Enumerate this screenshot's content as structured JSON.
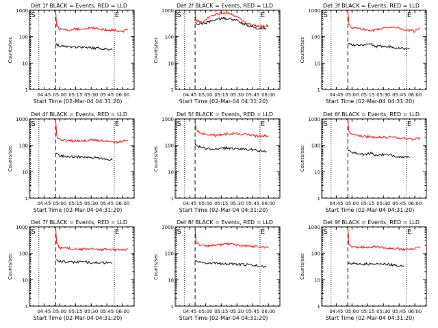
{
  "chart_data": [
    {
      "type": "line",
      "title": "Det 1f BLACK = Events, RED = LLD",
      "xlabel": "Start Time (02-Mar-04 04:31:20)",
      "ylabel": "Counts/sec",
      "yscale": "log",
      "ylim": [
        1,
        1000
      ],
      "xticks": [
        "04:45",
        "05:00",
        "05:15",
        "05:30",
        "05:45",
        "06:00"
      ],
      "yticks": [
        "1",
        "10",
        "100",
        "1000"
      ],
      "markers": [
        {
          "label": "S",
          "time": "04:32"
        },
        {
          "label": "E",
          "time": "05:52"
        }
      ],
      "dotted_lines": [
        "04:32",
        "04:40",
        "05:52"
      ],
      "dashed_line": "04:56",
      "series": [
        {
          "name": "Events",
          "color": "#000000",
          "x": [
            "04:56",
            "05:00",
            "05:10",
            "05:20",
            "05:30",
            "05:40",
            "05:50"
          ],
          "y": [
            55,
            45,
            42,
            40,
            38,
            36,
            32
          ]
        },
        {
          "name": "LLD",
          "color": "#ff0000",
          "x": [
            "04:56",
            "04:57",
            "05:00",
            "05:10",
            "05:20",
            "05:30",
            "05:40",
            "05:50",
            "06:00",
            "06:05"
          ],
          "y": [
            1000,
            260,
            190,
            180,
            200,
            210,
            190,
            180,
            160,
            190
          ]
        }
      ]
    },
    {
      "type": "line",
      "title": "Det 2f BLACK = Events, RED = LLD",
      "xlabel": "Start Time (02-Mar-04 04:31:20)",
      "ylabel": "Counts/sec",
      "yscale": "log",
      "ylim": [
        1,
        1000
      ],
      "xticks": [
        "04:45",
        "05:00",
        "05:15",
        "05:30",
        "05:45",
        "06:00"
      ],
      "yticks": [
        "1",
        "10",
        "100",
        "1000"
      ],
      "markers": [
        {
          "label": "S",
          "time": "04:32"
        },
        {
          "label": "E",
          "time": "05:52"
        }
      ],
      "dotted_lines": [
        "04:32",
        "04:40",
        "05:52"
      ],
      "dashed_line": "04:50",
      "series": [
        {
          "name": "Events",
          "color": "#000000",
          "x": [
            "04:50",
            "04:52",
            "05:00",
            "05:10",
            "05:20",
            "05:30",
            "05:40",
            "05:50",
            "05:58"
          ],
          "y": [
            320,
            290,
            330,
            450,
            500,
            410,
            260,
            210,
            210
          ]
        },
        {
          "name": "LLD",
          "color": "#ff0000",
          "x": [
            "04:50",
            "04:51",
            "04:55",
            "05:00",
            "05:10",
            "05:20",
            "05:30",
            "05:40",
            "05:50",
            "06:00"
          ],
          "y": [
            1000,
            420,
            350,
            450,
            700,
            800,
            600,
            300,
            250,
            260
          ]
        }
      ]
    },
    {
      "type": "line",
      "title": "Det 3f BLACK = Events, RED = LLD",
      "xlabel": "Start Time (02-Mar-04 04:31:20)",
      "ylabel": "Counts/sec",
      "yscale": "log",
      "ylim": [
        1,
        1000
      ],
      "xticks": [
        "04:45",
        "05:00",
        "05:15",
        "05:30",
        "05:45",
        "06:00"
      ],
      "yticks": [
        "1",
        "10",
        "100",
        "1000"
      ],
      "markers": [
        {
          "label": "S",
          "time": "04:32"
        },
        {
          "label": "E",
          "time": "05:52"
        }
      ],
      "dotted_lines": [
        "04:32",
        "04:40",
        "05:52"
      ],
      "dashed_line": "04:56",
      "series": [
        {
          "name": "Events",
          "color": "#000000",
          "x": [
            "04:56",
            "05:00",
            "05:10",
            "05:18",
            "05:22",
            "05:30",
            "05:40",
            "05:50",
            "05:55"
          ],
          "y": [
            60,
            50,
            45,
            55,
            40,
            45,
            40,
            35,
            35
          ]
        },
        {
          "name": "LLD",
          "color": "#ff0000",
          "x": [
            "04:56",
            "04:57",
            "05:00",
            "05:10",
            "05:20",
            "05:30",
            "05:40",
            "05:50",
            "06:00",
            "06:05"
          ],
          "y": [
            1000,
            300,
            220,
            190,
            170,
            210,
            240,
            180,
            160,
            220
          ]
        }
      ]
    },
    {
      "type": "line",
      "title": "Det 4f BLACK = Events, RED = LLD",
      "xlabel": "Start Time (02-Mar-04 04:31:20)",
      "ylabel": "Counts/sec",
      "yscale": "log",
      "ylim": [
        1,
        1000
      ],
      "xticks": [
        "04:45",
        "05:00",
        "05:15",
        "05:30",
        "05:45",
        "06:00"
      ],
      "yticks": [
        "1",
        "10",
        "100",
        "1000"
      ],
      "markers": [
        {
          "label": "S",
          "time": "04:32"
        },
        {
          "label": "E",
          "time": "05:52"
        }
      ],
      "dotted_lines": [
        "04:32",
        "04:40",
        "05:52"
      ],
      "dashed_line": "04:56",
      "series": [
        {
          "name": "Events",
          "color": "#000000",
          "x": [
            "04:56",
            "05:00",
            "05:10",
            "05:20",
            "05:30",
            "05:40",
            "05:50"
          ],
          "y": [
            50,
            40,
            38,
            36,
            34,
            32,
            28
          ]
        },
        {
          "name": "LLD",
          "color": "#ff0000",
          "x": [
            "04:56",
            "04:57",
            "05:00",
            "05:10",
            "05:20",
            "05:30",
            "05:40",
            "05:50",
            "06:00",
            "06:05"
          ],
          "y": [
            1000,
            240,
            160,
            150,
            140,
            160,
            150,
            130,
            140,
            160
          ]
        }
      ]
    },
    {
      "type": "line",
      "title": "Det 5f BLACK = Events, RED = LLD",
      "xlabel": "Start Time (02-Mar-04 04:31:20)",
      "ylabel": "Counts/sec",
      "yscale": "log",
      "ylim": [
        1,
        1000
      ],
      "xticks": [
        "04:45",
        "05:00",
        "05:15",
        "05:30",
        "05:45",
        "06:00"
      ],
      "yticks": [
        "1",
        "10",
        "100",
        "1000"
      ],
      "markers": [
        {
          "label": "S",
          "time": "04:32"
        },
        {
          "label": "E",
          "time": "05:52"
        }
      ],
      "dotted_lines": [
        "04:32",
        "04:40",
        "05:52"
      ],
      "dashed_line": "04:50",
      "series": [
        {
          "name": "Events",
          "color": "#000000",
          "x": [
            "04:50",
            "04:52",
            "05:00",
            "05:10",
            "05:20",
            "05:30",
            "05:40",
            "05:50",
            "05:58"
          ],
          "y": [
            110,
            95,
            75,
            70,
            80,
            75,
            70,
            65,
            60
          ]
        },
        {
          "name": "LLD",
          "color": "#ff0000",
          "x": [
            "04:50",
            "04:51",
            "04:55",
            "05:00",
            "05:10",
            "05:20",
            "05:30",
            "05:40",
            "05:50",
            "06:00"
          ],
          "y": [
            1000,
            400,
            300,
            260,
            240,
            270,
            280,
            250,
            220,
            230
          ]
        }
      ]
    },
    {
      "type": "line",
      "title": "Det 6f BLACK = Events, RED = LLD",
      "xlabel": "Start Time (02-Mar-04 04:31:20)",
      "ylabel": "Counts/sec",
      "yscale": "log",
      "ylim": [
        1,
        1000
      ],
      "xticks": [
        "04:45",
        "05:00",
        "05:15",
        "05:30",
        "05:45",
        "06:00"
      ],
      "yticks": [
        "1",
        "10",
        "100",
        "1000"
      ],
      "markers": [
        {
          "label": "S",
          "time": "04:32"
        },
        {
          "label": "E",
          "time": "05:52"
        }
      ],
      "dotted_lines": [
        "04:32",
        "04:40",
        "05:52"
      ],
      "dashed_line": "04:56",
      "series": [
        {
          "name": "Events",
          "color": "#000000",
          "x": [
            "04:56",
            "05:00",
            "05:10",
            "05:18",
            "05:22",
            "05:30",
            "05:40",
            "05:50",
            "05:55"
          ],
          "y": [
            65,
            55,
            45,
            50,
            42,
            45,
            40,
            36,
            34
          ]
        },
        {
          "name": "LLD",
          "color": "#ff0000",
          "x": [
            "04:56",
            "04:57",
            "05:00",
            "05:10",
            "05:20",
            "05:30",
            "05:40",
            "05:50",
            "06:00",
            "06:05"
          ],
          "y": [
            1000,
            320,
            250,
            220,
            200,
            200,
            210,
            180,
            170,
            190
          ]
        }
      ]
    },
    {
      "type": "line",
      "title": "Det 7f BLACK = Events, RED = LLD",
      "xlabel": "Start Time (02-Mar-04 04:31:20)",
      "ylabel": "Counts/sec",
      "yscale": "log",
      "ylim": [
        1,
        1000
      ],
      "xticks": [
        "04:45",
        "05:00",
        "05:15",
        "05:30",
        "05:45",
        "06:00"
      ],
      "yticks": [
        "1",
        "10",
        "100",
        "1000"
      ],
      "markers": [
        {
          "label": "S",
          "time": "04:32"
        },
        {
          "label": "E",
          "time": "05:52"
        }
      ],
      "dotted_lines": [
        "04:32",
        "04:40",
        "05:52"
      ],
      "dashed_line": "04:56",
      "series": [
        {
          "name": "Events",
          "color": "#000000",
          "x": [
            "04:56",
            "05:00",
            "05:10",
            "05:20",
            "05:30",
            "05:40",
            "05:50"
          ],
          "y": [
            60,
            50,
            45,
            48,
            45,
            44,
            42
          ]
        },
        {
          "name": "LLD",
          "color": "#ff0000",
          "x": [
            "04:56",
            "04:57",
            "05:00",
            "05:10",
            "05:20",
            "05:30",
            "05:40",
            "05:50",
            "06:00",
            "06:05"
          ],
          "y": [
            1000,
            230,
            160,
            150,
            140,
            150,
            140,
            140,
            130,
            150
          ]
        }
      ]
    },
    {
      "type": "line",
      "title": "Det 8f BLACK = Events, RED = LLD",
      "xlabel": "Start Time (02-Mar-04 04:31:20)",
      "ylabel": "Counts/sec",
      "yscale": "log",
      "ylim": [
        1,
        1000
      ],
      "xticks": [
        "04:45",
        "05:00",
        "05:15",
        "05:30",
        "05:45",
        "06:00"
      ],
      "yticks": [
        "1",
        "10",
        "100",
        "1000"
      ],
      "markers": [
        {
          "label": "S",
          "time": "04:32"
        },
        {
          "label": "E",
          "time": "05:52"
        }
      ],
      "dotted_lines": [
        "04:32",
        "04:40",
        "05:52"
      ],
      "dashed_line": "04:50",
      "series": [
        {
          "name": "Events",
          "color": "#000000",
          "x": [
            "04:50",
            "04:52",
            "05:00",
            "05:10",
            "05:20",
            "05:30",
            "05:40",
            "05:50",
            "05:58"
          ],
          "y": [
            50,
            48,
            44,
            42,
            40,
            38,
            37,
            34,
            30
          ]
        },
        {
          "name": "LLD",
          "color": "#ff0000",
          "x": [
            "04:50",
            "04:51",
            "04:55",
            "05:00",
            "05:10",
            "05:20",
            "05:30",
            "05:40",
            "05:50",
            "06:00"
          ],
          "y": [
            1000,
            260,
            200,
            190,
            200,
            230,
            210,
            190,
            180,
            170
          ]
        }
      ]
    },
    {
      "type": "line",
      "title": "Det 9f BLACK = Events, RED = LLD",
      "xlabel": "Start Time (02-Mar-04 04:31:20)",
      "ylabel": "Counts/sec",
      "yscale": "log",
      "ylim": [
        1,
        1000
      ],
      "xticks": [
        "04:45",
        "05:00",
        "05:15",
        "05:30",
        "05:45",
        "06:00"
      ],
      "yticks": [
        "1",
        "10",
        "100",
        "1000"
      ],
      "markers": [
        {
          "label": "S",
          "time": "04:32"
        },
        {
          "label": "E",
          "time": "05:52"
        }
      ],
      "dotted_lines": [
        "04:32",
        "04:40",
        "05:52"
      ],
      "dashed_line": "04:56",
      "series": [
        {
          "name": "Events",
          "color": "#000000",
          "x": [
            "04:56",
            "05:00",
            "05:10",
            "05:20",
            "05:30",
            "05:40",
            "05:50"
          ],
          "y": [
            45,
            40,
            40,
            38,
            40,
            36,
            32
          ]
        },
        {
          "name": "LLD",
          "color": "#ff0000",
          "x": [
            "04:56",
            "04:57",
            "05:00",
            "05:10",
            "05:20",
            "05:30",
            "05:40",
            "05:50",
            "06:00",
            "06:05"
          ],
          "y": [
            1000,
            230,
            180,
            170,
            180,
            170,
            150,
            140,
            150,
            180
          ]
        }
      ]
    }
  ]
}
